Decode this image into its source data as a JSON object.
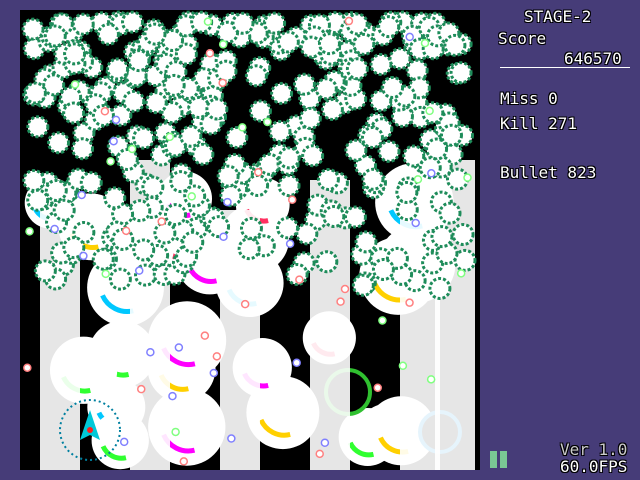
{
  "hud": {
    "stage": "STAGE-2",
    "score_label": "Score",
    "score": "646570",
    "miss": "Miss 0",
    "kill": "Kill 271",
    "bullet": "Bullet 823",
    "version": "Ver 1.0",
    "fps": "60.0FPS"
  },
  "colors": {
    "sidebar": "#463c78",
    "gear_bullet": "#1e8c5a",
    "life_bar": "#7ac894",
    "player": "#00c8d8"
  },
  "icons": {
    "player": "player-ship-icon",
    "lives": "life-bar-icon"
  }
}
